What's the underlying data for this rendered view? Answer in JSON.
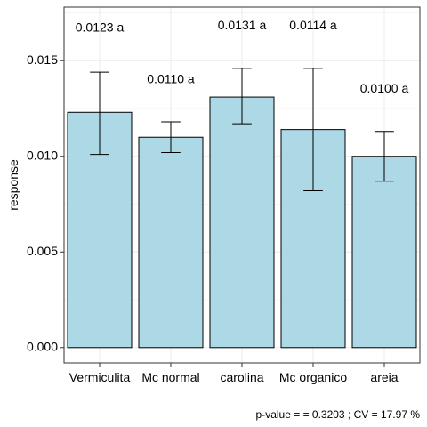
{
  "chart_data": {
    "type": "bar",
    "title": "",
    "xlabel": "",
    "ylabel": "response",
    "ylim": [
      -0.0008,
      0.0178
    ],
    "y_ticks": [
      0.0,
      0.005,
      0.01,
      0.015
    ],
    "y_tick_labels": [
      "0.000",
      "0.005",
      "0.010",
      "0.015"
    ],
    "grid": true,
    "legend": "none",
    "categories": [
      "Vermiculita",
      "Mc normal",
      "carolina",
      "Mc organico",
      "areia"
    ],
    "values": [
      0.0123,
      0.011,
      0.0131,
      0.0114,
      0.01
    ],
    "error_low": [
      0.0101,
      0.0102,
      0.0117,
      0.0082,
      0.0087
    ],
    "error_high": [
      0.0144,
      0.0118,
      0.0146,
      0.0146,
      0.0113
    ],
    "bar_labels": [
      "0.0123 a",
      "0.0110 a",
      "0.0131 a",
      "0.0114 a",
      "0.0100 a"
    ],
    "bar_label_y": [
      0.0167,
      0.014,
      0.0168,
      0.0168,
      0.0135
    ],
    "caption": "p-value =  = 0.3203 ; CV =  17.97 %",
    "colors": {
      "bar_fill": "#add8e6",
      "bar_stroke": "#000000",
      "grid": "#ebebeb",
      "panel_border": "#333333"
    }
  }
}
